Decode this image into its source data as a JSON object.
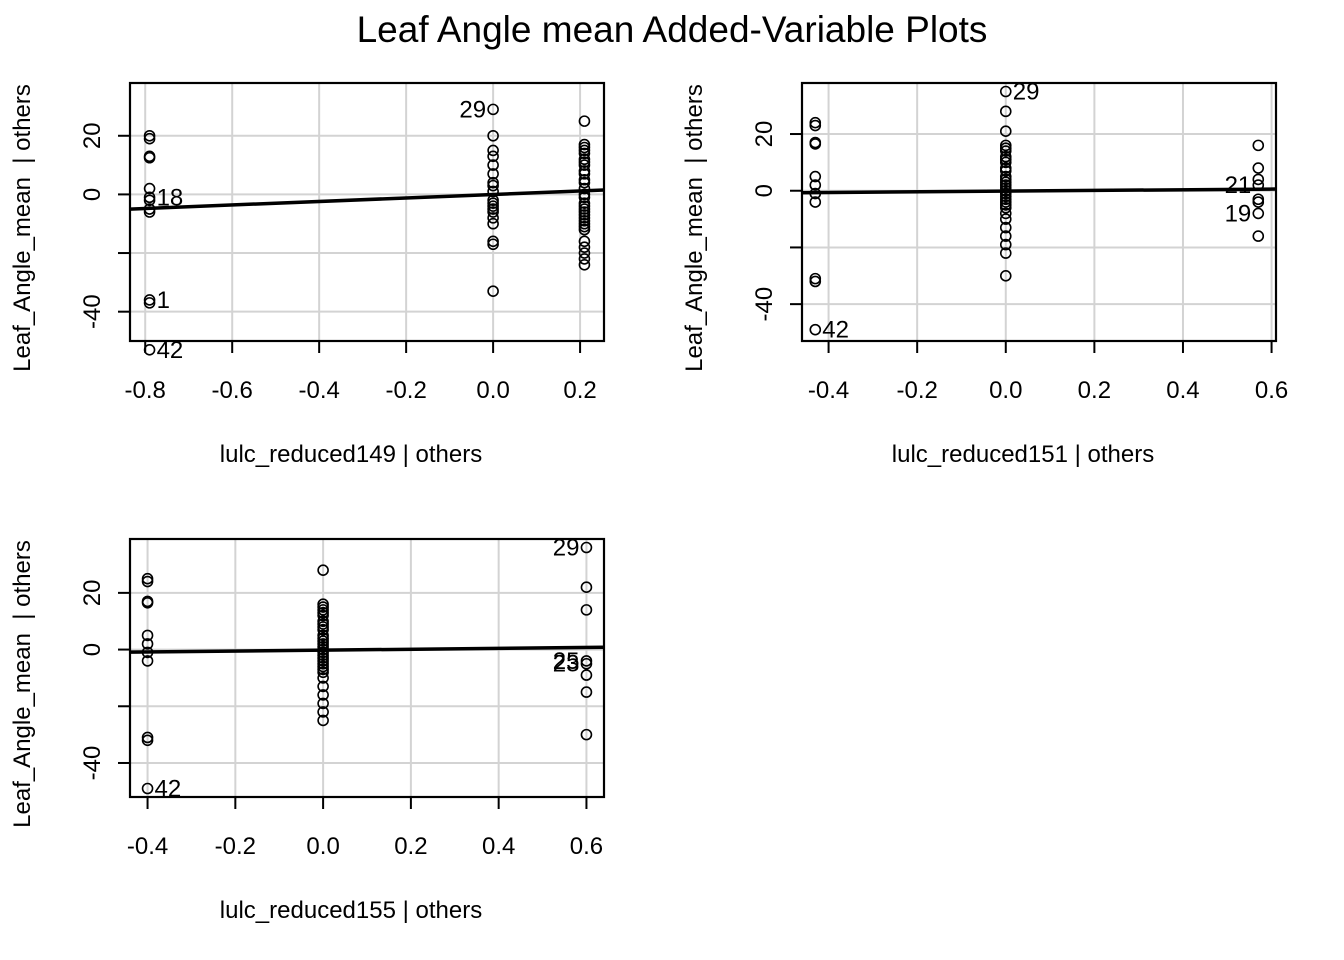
{
  "figure": {
    "title": "Leaf Angle mean Added-Variable Plots"
  },
  "chart_data": [
    {
      "type": "scatter",
      "xlabel": "lulc_reduced149 | others",
      "ylabel": "Leaf_Angle_mean  | others",
      "xlim": [
        -0.835,
        0.255
      ],
      "ylim": [
        -50,
        38
      ],
      "xticks": [
        -0.8,
        -0.6,
        -0.4,
        -0.2,
        0.0,
        0.2
      ],
      "xtick_labels": [
        "-0.8",
        "-0.6",
        "-0.4",
        "-0.2",
        "0.0",
        "0.2"
      ],
      "yticks": [
        -40,
        -20,
        0,
        20
      ],
      "ytick_labels": [
        "-40",
        "",
        "0",
        "20"
      ],
      "grid": true,
      "fit_line": {
        "x": [
          -0.835,
          0.255
        ],
        "y": [
          -5.0,
          1.5
        ]
      },
      "points": {
        "x": [
          -0.79,
          -0.79,
          -0.79,
          -0.79,
          -0.79,
          -0.79,
          -0.79,
          -0.79,
          -0.79,
          -0.79,
          -0.79,
          -0.79,
          0.0,
          0.0,
          0.0,
          0.0,
          0.0,
          0.0,
          0.0,
          0.0,
          0.0,
          0.0,
          0.0,
          0.0,
          0.0,
          0.0,
          0.0,
          0.0,
          0.0,
          0.0,
          0.0,
          0.21,
          0.21,
          0.21,
          0.21,
          0.21,
          0.21,
          0.21,
          0.21,
          0.21,
          0.21,
          0.21,
          0.21,
          0.21,
          0.21,
          0.21,
          0.21,
          0.21,
          0.21,
          0.21,
          0.21,
          0.21,
          0.21,
          0.21,
          0.21,
          0.21,
          0.21,
          0.21,
          0.21,
          0.21,
          0.21
        ],
        "y": [
          20,
          19,
          13,
          12.5,
          2,
          -1,
          -2,
          -5,
          -6,
          -36,
          -37,
          -53,
          29,
          20,
          15,
          13,
          7,
          4,
          3,
          1,
          -4,
          -5,
          -6,
          -8,
          -10,
          -16,
          -17,
          -33,
          -2,
          -3,
          10,
          25,
          17,
          16,
          15,
          14,
          12,
          11,
          10,
          8,
          7,
          5,
          4,
          2,
          0,
          -1,
          -3,
          -4,
          -5,
          -6,
          -7,
          -8,
          -9,
          -10,
          -11,
          -12,
          -16,
          -18,
          -20,
          -22,
          -24
        ]
      },
      "labels": [
        {
          "text": "29",
          "x": 0.0,
          "y": 29,
          "side": "left"
        },
        {
          "text": "18",
          "x": -0.79,
          "y": -1,
          "side": "right"
        },
        {
          "text": "1",
          "x": -0.79,
          "y": -36,
          "side": "right"
        },
        {
          "text": "42",
          "x": -0.79,
          "y": -53,
          "side": "right"
        }
      ]
    },
    {
      "type": "scatter",
      "xlabel": "lulc_reduced151 | others",
      "ylabel": "Leaf_Angle_mean  | others",
      "xlim": [
        -0.46,
        0.61
      ],
      "ylim": [
        -53,
        38
      ],
      "xticks": [
        -0.4,
        -0.2,
        0.0,
        0.2,
        0.4,
        0.6
      ],
      "xtick_labels": [
        "-0.4",
        "-0.2",
        "0.0",
        "0.2",
        "0.4",
        "0.6"
      ],
      "yticks": [
        -40,
        -20,
        0,
        20
      ],
      "ytick_labels": [
        "-40",
        "",
        "0",
        "20"
      ],
      "grid": true,
      "fit_line": {
        "x": [
          -0.46,
          0.61
        ],
        "y": [
          -0.7,
          0.6
        ]
      },
      "points": {
        "x": [
          -0.43,
          -0.43,
          -0.43,
          -0.43,
          -0.43,
          -0.43,
          -0.43,
          -0.43,
          -0.43,
          -0.43,
          -0.43,
          0.0,
          0.0,
          0.0,
          0.0,
          0.0,
          0.0,
          0.0,
          0.0,
          0.0,
          0.0,
          0.0,
          0.0,
          0.0,
          0.0,
          0.0,
          0.0,
          0.0,
          0.0,
          0.0,
          0.0,
          0.0,
          0.0,
          0.0,
          0.0,
          0.0,
          0.0,
          0.0,
          0.0,
          0.0,
          0.0,
          0.57,
          0.57,
          0.57,
          0.57,
          0.57,
          0.57,
          0.57,
          0.57
        ],
        "y": [
          24,
          23,
          17,
          16.5,
          5,
          2,
          -1,
          -4,
          -31,
          -32,
          -49,
          35,
          28,
          21,
          16,
          15,
          14,
          12,
          11,
          10,
          8,
          7,
          5,
          4,
          3,
          2,
          1,
          0,
          -1,
          -2,
          -3,
          -4,
          -5,
          -6,
          -8,
          -10,
          -13,
          -16,
          -19,
          -22,
          -30,
          16,
          8,
          4,
          2,
          -3,
          -4,
          -8,
          -16
        ]
      },
      "labels": [
        {
          "text": "29",
          "x": 0.0,
          "y": 35,
          "side": "right"
        },
        {
          "text": "21",
          "x": 0.57,
          "y": 2,
          "side": "left"
        },
        {
          "text": "19",
          "x": 0.57,
          "y": -8,
          "side": "left"
        },
        {
          "text": "42",
          "x": -0.43,
          "y": -49,
          "side": "right"
        }
      ]
    },
    {
      "type": "scatter",
      "xlabel": "lulc_reduced155 | others",
      "ylabel": "Leaf_Angle_mean  | others",
      "xlim": [
        -0.44,
        0.64
      ],
      "ylim": [
        -52,
        39
      ],
      "xticks": [
        -0.4,
        -0.2,
        0.0,
        0.2,
        0.4,
        0.6
      ],
      "xtick_labels": [
        "-0.4",
        "-0.2",
        "0.0",
        "0.2",
        "0.4",
        "0.6"
      ],
      "yticks": [
        -40,
        -20,
        0,
        20
      ],
      "ytick_labels": [
        "-40",
        "",
        "0",
        "20"
      ],
      "grid": true,
      "fit_line": {
        "x": [
          -0.44,
          0.64
        ],
        "y": [
          -0.9,
          0.8
        ]
      },
      "points": {
        "x": [
          -0.4,
          -0.4,
          -0.4,
          -0.4,
          -0.4,
          -0.4,
          -0.4,
          -0.4,
          -0.4,
          -0.4,
          -0.4,
          0.0,
          0.0,
          0.0,
          0.0,
          0.0,
          0.0,
          0.0,
          0.0,
          0.0,
          0.0,
          0.0,
          0.0,
          0.0,
          0.0,
          0.0,
          0.0,
          0.0,
          0.0,
          0.0,
          0.0,
          0.0,
          0.0,
          0.0,
          0.0,
          0.0,
          0.0,
          0.0,
          0.0,
          0.0,
          0.0,
          0.6,
          0.6,
          0.6,
          0.6,
          0.6,
          0.6,
          0.6,
          0.6
        ],
        "y": [
          25,
          24,
          17,
          16.5,
          5,
          2,
          -1,
          -4,
          -31,
          -32,
          -49,
          28,
          16,
          15,
          14,
          13,
          12,
          10,
          9,
          8,
          7,
          5,
          4,
          3,
          2,
          1,
          0,
          -1,
          -2,
          -3,
          -4,
          -5,
          -6,
          -7,
          -8,
          -10,
          -13,
          -16,
          -19,
          -22,
          -25,
          36,
          22,
          14,
          -4,
          -5,
          -9,
          -15,
          -30
        ]
      },
      "labels": [
        {
          "text": "29",
          "x": 0.6,
          "y": 36,
          "side": "left"
        },
        {
          "text": "25",
          "x": 0.6,
          "y": -4,
          "side": "left"
        },
        {
          "text": "23",
          "x": 0.6,
          "y": -5,
          "side": "left"
        },
        {
          "text": "42",
          "x": -0.4,
          "y": -49,
          "side": "right"
        }
      ]
    }
  ]
}
